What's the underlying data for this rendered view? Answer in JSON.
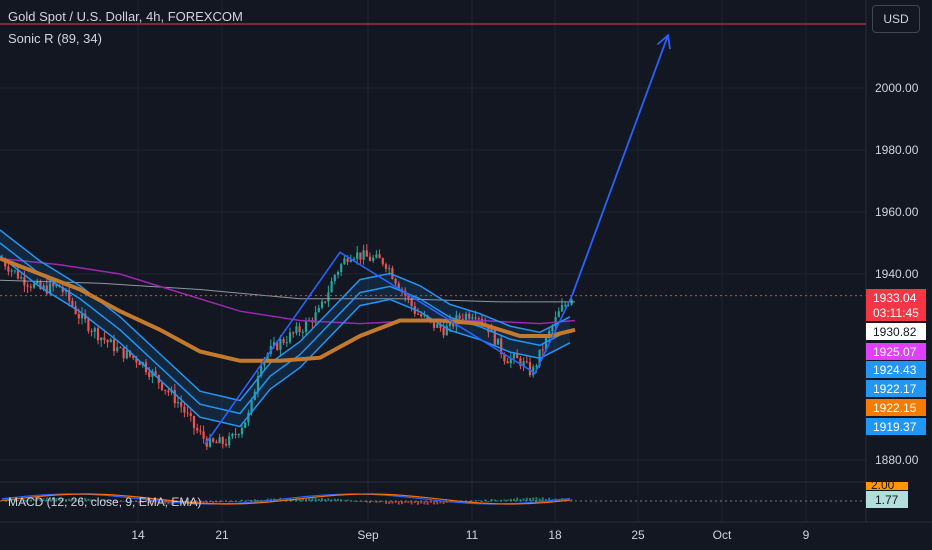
{
  "header": {
    "title": "Gold Spot / U.S. Dollar, 4h, FOREXCOM",
    "indicator": "Sonic R (89, 34)",
    "currency_button": "USD"
  },
  "macd": {
    "label": "MACD (12, 26, close, 9, EMA, EMA)",
    "value_tag": "1.77",
    "upper_tag": "2.00"
  },
  "colors": {
    "background": "#131722",
    "grid": "#1f2330",
    "up_candle": "#26a69a",
    "down_candle": "#ef5350",
    "channel": "#2196f3",
    "ema_orange": "#c47a2c",
    "ma_magenta": "#9c27b0",
    "ma_gray": "#b2b5be",
    "drawing_arrow": "#2962ff",
    "current_price_line": "#f23645"
  },
  "chart_data": {
    "type": "candlestick",
    "symbol": "Gold Spot / U.S. Dollar",
    "timeframe": "4h",
    "y_axis": {
      "ticks": [
        2000,
        1980,
        1960,
        1940,
        1880
      ],
      "tick_labels": [
        "2000.00",
        "1980.00",
        "1960.00",
        "1940.00",
        "1880.00"
      ],
      "range": [
        1869,
        2022
      ]
    },
    "x_axis": {
      "tick_labels": [
        "14",
        "21",
        "Sep",
        "11",
        "18",
        "25",
        "Oct",
        "9"
      ]
    },
    "price_tags": [
      {
        "value": "1933.04",
        "color": "#f23645",
        "text_color": "#ffffff"
      },
      {
        "value": "03:11:45",
        "color": "#f23645",
        "text_color": "#ffffff"
      },
      {
        "value": "1930.82",
        "color": "#ffffff",
        "text_color": "#131722"
      },
      {
        "value": "1925.07",
        "color": "#e040fb",
        "text_color": "#ffffff"
      },
      {
        "value": "1924.43",
        "color": "#2196f3",
        "text_color": "#ffffff"
      },
      {
        "value": "1922.17",
        "color": "#2196f3",
        "text_color": "#ffffff"
      },
      {
        "value": "1922.15",
        "color": "#f57c00",
        "text_color": "#ffffff"
      },
      {
        "value": "1919.37",
        "color": "#2196f3",
        "text_color": "#ffffff"
      }
    ],
    "approx_price_path": [
      [
        0,
        1945
      ],
      [
        20,
        1939
      ],
      [
        40,
        1935
      ],
      [
        60,
        1936
      ],
      [
        80,
        1926
      ],
      [
        100,
        1920
      ],
      [
        120,
        1915
      ],
      [
        140,
        1912
      ],
      [
        160,
        1905
      ],
      [
        180,
        1898
      ],
      [
        195,
        1890
      ],
      [
        210,
        1885
      ],
      [
        230,
        1886
      ],
      [
        250,
        1895
      ],
      [
        260,
        1912
      ],
      [
        280,
        1918
      ],
      [
        300,
        1922
      ],
      [
        320,
        1928
      ],
      [
        335,
        1940
      ],
      [
        350,
        1947
      ],
      [
        370,
        1945
      ],
      [
        385,
        1944
      ],
      [
        400,
        1936
      ],
      [
        415,
        1928
      ],
      [
        430,
        1924
      ],
      [
        445,
        1922
      ],
      [
        460,
        1926
      ],
      [
        475,
        1928
      ],
      [
        490,
        1922
      ],
      [
        505,
        1913
      ],
      [
        520,
        1912
      ],
      [
        532,
        1908
      ],
      [
        545,
        1918
      ],
      [
        560,
        1928
      ],
      [
        572,
        1933
      ]
    ],
    "sonic_channel_mid": [
      [
        0,
        1950
      ],
      [
        40,
        1940
      ],
      [
        80,
        1932
      ],
      [
        120,
        1922
      ],
      [
        160,
        1910
      ],
      [
        200,
        1898
      ],
      [
        240,
        1895
      ],
      [
        270,
        1907
      ],
      [
        300,
        1914
      ],
      [
        330,
        1924
      ],
      [
        360,
        1934
      ],
      [
        390,
        1936
      ],
      [
        420,
        1932
      ],
      [
        450,
        1926
      ],
      [
        480,
        1923
      ],
      [
        510,
        1919
      ],
      [
        540,
        1917
      ],
      [
        570,
        1922
      ]
    ],
    "ema_orange": [
      [
        0,
        1945
      ],
      [
        40,
        1940
      ],
      [
        80,
        1935
      ],
      [
        120,
        1928
      ],
      [
        160,
        1922
      ],
      [
        200,
        1915
      ],
      [
        240,
        1912
      ],
      [
        280,
        1912
      ],
      [
        320,
        1913
      ],
      [
        360,
        1920
      ],
      [
        400,
        1925
      ],
      [
        440,
        1925
      ],
      [
        480,
        1924
      ],
      [
        520,
        1920
      ],
      [
        550,
        1920
      ],
      [
        575,
        1922
      ]
    ],
    "ma_magenta": [
      [
        0,
        1945
      ],
      [
        60,
        1943
      ],
      [
        120,
        1940
      ],
      [
        180,
        1934
      ],
      [
        240,
        1928
      ],
      [
        300,
        1925
      ],
      [
        360,
        1924
      ],
      [
        420,
        1925
      ],
      [
        480,
        1925
      ],
      [
        540,
        1924
      ],
      [
        575,
        1925
      ]
    ],
    "ma_gray": [
      [
        0,
        1938
      ],
      [
        100,
        1937
      ],
      [
        200,
        1935
      ],
      [
        300,
        1932
      ],
      [
        400,
        1932
      ],
      [
        500,
        1931
      ],
      [
        575,
        1931
      ]
    ],
    "projection_arrow": {
      "from": [
        572,
        1933
      ],
      "to": [
        668,
        2017
      ]
    },
    "drawing_zigzag": [
      [
        205,
        1885
      ],
      [
        340,
        1947
      ],
      [
        535,
        1908
      ],
      [
        572,
        1933
      ]
    ]
  }
}
